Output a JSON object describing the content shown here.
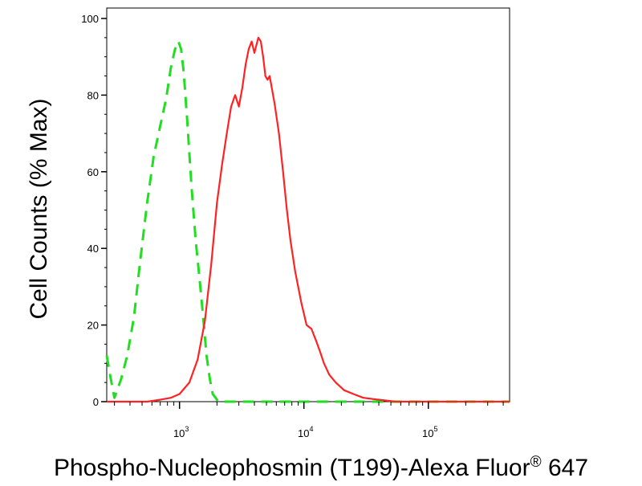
{
  "chart_data": {
    "type": "line",
    "title": "",
    "xlabel": "Phospho-Nucleophosmin (T199)-Alexa Fluor",
    "xlabel_superscript": "®",
    "xlabel_suffix": " 647",
    "ylabel": "Cell Counts (% Max)",
    "x_scale": "log",
    "xlim": [
      260,
      450000
    ],
    "ylim": [
      0,
      100
    ],
    "yticks": [
      0,
      20,
      40,
      60,
      80,
      100
    ],
    "ytick_labels": [
      "0",
      "20",
      "40",
      "60",
      "80",
      "100"
    ],
    "xticks": [
      1000,
      10000,
      100000
    ],
    "xtick_base": "10",
    "xtick_exponents": [
      "3",
      "4",
      "5"
    ],
    "grid": false,
    "legend": "none",
    "series": [
      {
        "color": "#22dd22",
        "style": "dashed",
        "x": [
          260,
          280,
          300,
          340,
          380,
          430,
          480,
          550,
          620,
          700,
          780,
          850,
          920,
          980,
          1030,
          1080,
          1150,
          1250,
          1350,
          1450,
          1550,
          1650,
          1750,
          1850,
          1950,
          2050,
          2200,
          2500,
          3000,
          4000,
          5000,
          8000,
          15000,
          30000,
          60000,
          150000,
          450000
        ],
        "y": [
          12,
          6,
          1,
          6,
          12,
          22,
          36,
          52,
          64,
          72,
          79,
          87,
          92,
          94,
          92,
          86,
          74,
          56,
          42,
          32,
          22,
          12,
          6,
          2,
          1,
          0,
          0,
          0,
          0,
          0,
          0,
          0,
          0,
          0,
          0,
          0,
          0
        ]
      },
      {
        "color": "#ff2222",
        "style": "solid",
        "x": [
          260,
          400,
          550,
          700,
          850,
          1000,
          1200,
          1400,
          1600,
          1800,
          2000,
          2200,
          2400,
          2600,
          2800,
          3000,
          3200,
          3400,
          3600,
          3800,
          4000,
          4300,
          4500,
          4700,
          4900,
          5100,
          5300,
          5800,
          6300,
          6800,
          7300,
          7800,
          8500,
          9500,
          10500,
          11500,
          12500,
          13500,
          14500,
          16000,
          18000,
          21000,
          25000,
          30000,
          40000,
          55000,
          80000,
          120000,
          200000,
          450000
        ],
        "y": [
          0,
          0,
          0,
          0.5,
          1,
          2,
          5,
          11,
          21,
          36,
          52,
          62,
          70,
          77,
          80,
          77,
          82,
          88,
          92,
          94,
          91,
          95,
          94,
          90,
          85,
          84,
          85,
          78,
          70,
          60,
          50,
          42,
          34,
          26,
          20,
          19,
          16,
          13,
          10,
          7,
          5,
          3,
          2,
          1,
          0.5,
          0,
          0,
          0,
          0,
          0
        ]
      }
    ]
  }
}
